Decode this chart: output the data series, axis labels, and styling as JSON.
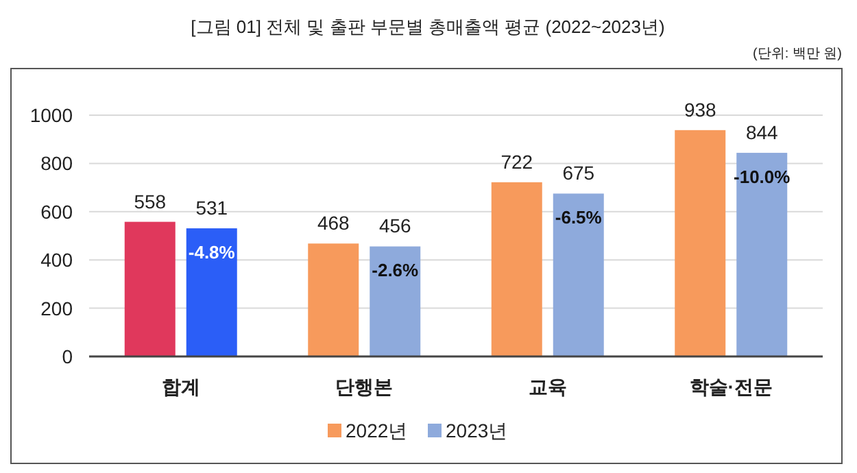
{
  "chart_data": {
    "type": "bar",
    "title": "[그림 01] 전체 및 출판 부문별 총매출액 평균 (2022~2023년)",
    "subtitle": "(단위: 백만 원)",
    "categories": [
      "합계",
      "단행본",
      "교육",
      "학술·전문"
    ],
    "series": [
      {
        "name": "2022년",
        "color": "#f79a5c",
        "colors": [
          "#e0385c",
          "#f79a5c",
          "#f79a5c",
          "#f79a5c"
        ],
        "values": [
          558,
          468,
          722,
          938
        ]
      },
      {
        "name": "2023년",
        "color": "#8eaadc",
        "colors": [
          "#2b5ef7",
          "#8eaadc",
          "#8eaadc",
          "#8eaadc"
        ],
        "values": [
          531,
          456,
          675,
          844
        ]
      }
    ],
    "annotations": [
      {
        "text": "-4.8%",
        "x": "합계",
        "y": 531
      },
      {
        "text": "-2.6%",
        "x": "단행본",
        "y": 456
      },
      {
        "text": "-6.5%",
        "x": "교육",
        "y": 675
      },
      {
        "text": "-10.0%",
        "x": "학술·전문",
        "y": 844
      }
    ],
    "ylim": [
      0,
      1000
    ],
    "yticks": [
      0,
      200,
      400,
      600,
      800,
      1000
    ],
    "grid": "y",
    "legend": "bottom",
    "data_labels": true
  }
}
